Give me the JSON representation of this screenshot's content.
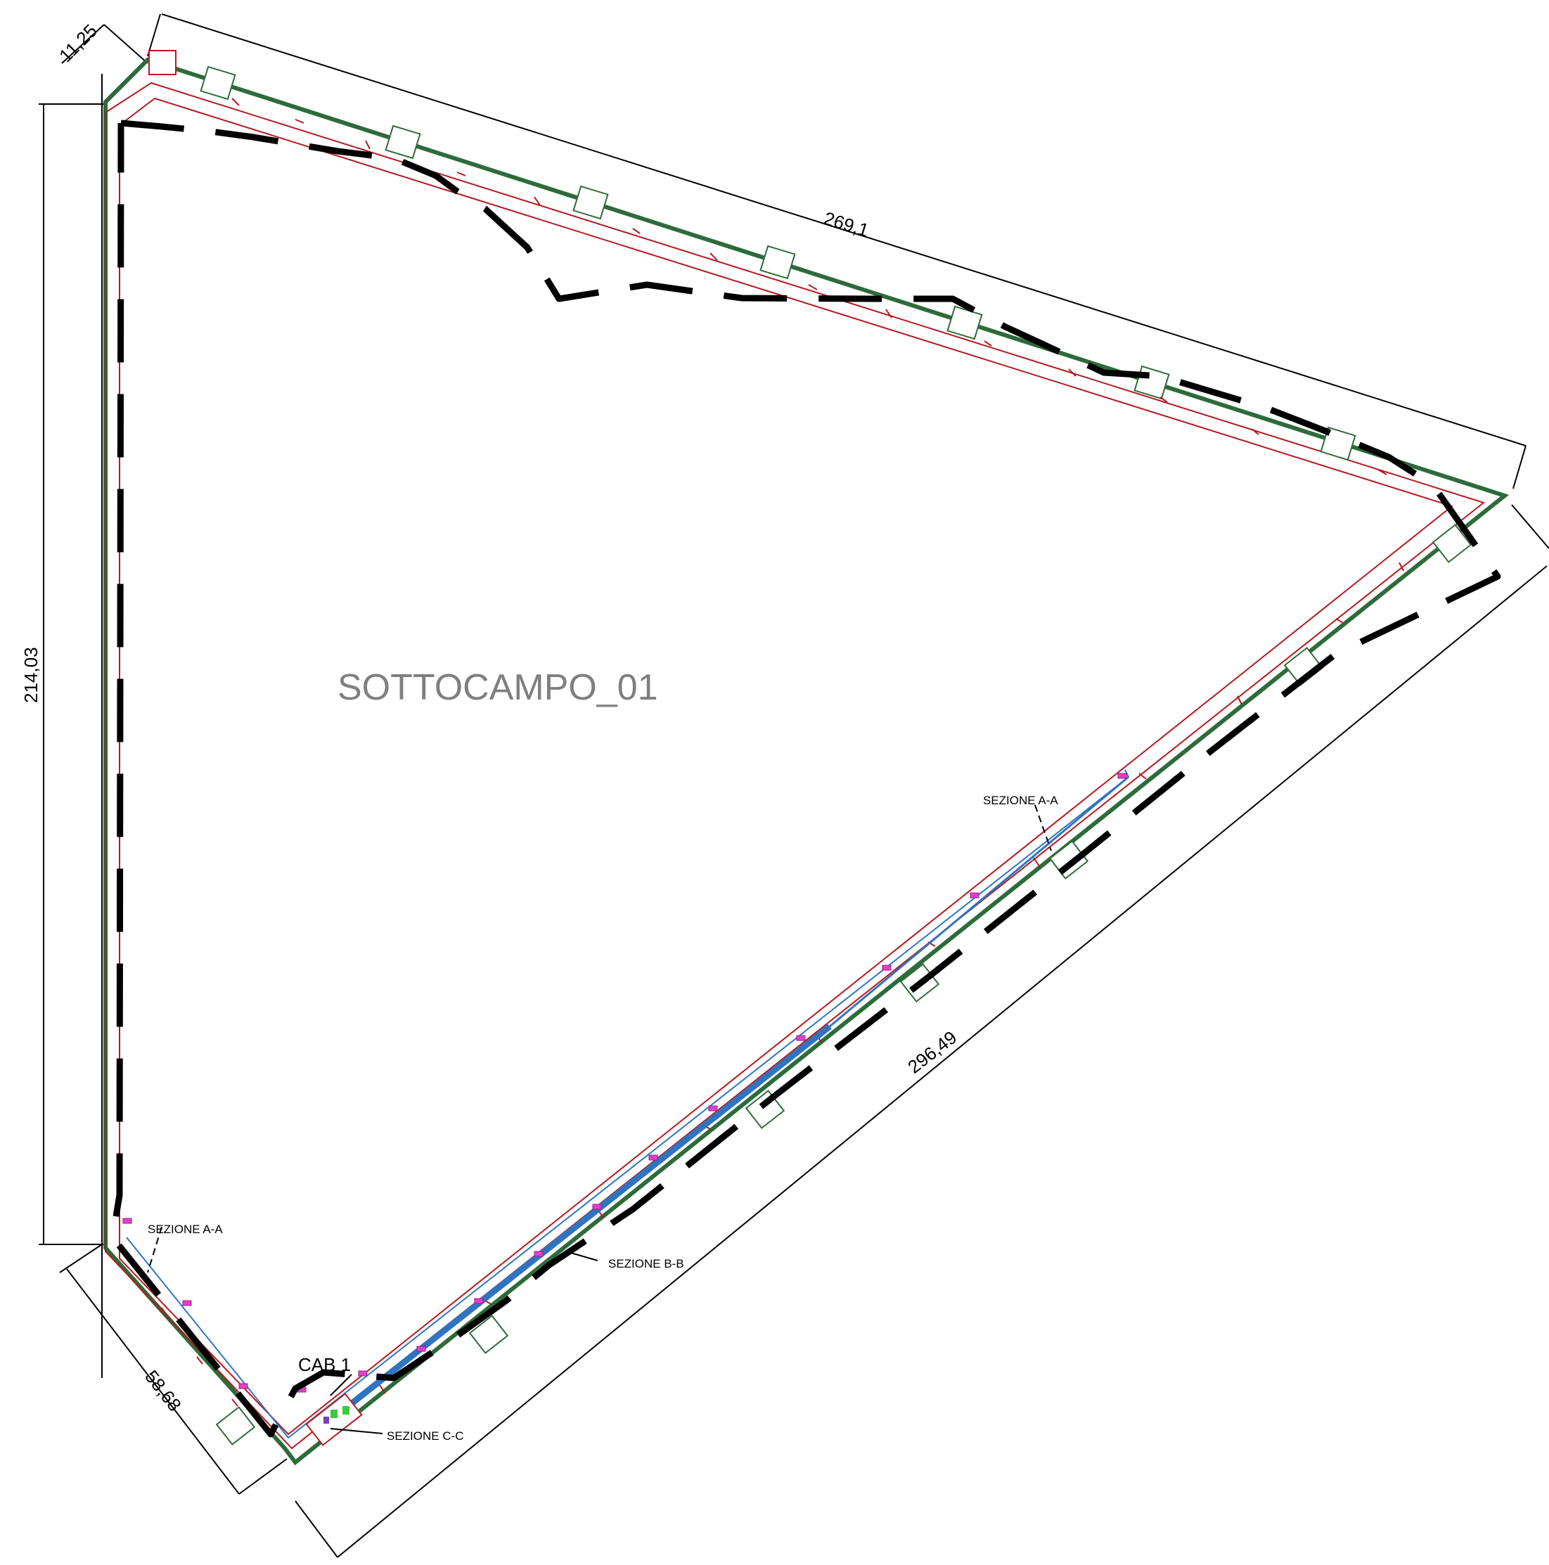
{
  "title": "SOTTOCAMPO_01",
  "cabin": "CAB 1",
  "dimensions": {
    "top_edge": "269,1",
    "left_edge": "214,03",
    "right_edge": "296,49",
    "bottom_left": "58,68",
    "offset": "11,25"
  },
  "sections": {
    "a_left": "SEZIONE A-A",
    "a_right": "SEZIONE A-A",
    "b": "SEZIONE B-B",
    "c": "SEZIONE C-C"
  },
  "colors": {
    "fence": "#2e6b3a",
    "road": "#b5191f",
    "cable": "#2f74c0",
    "boundary": "#000000",
    "marker": "#e040c8"
  }
}
